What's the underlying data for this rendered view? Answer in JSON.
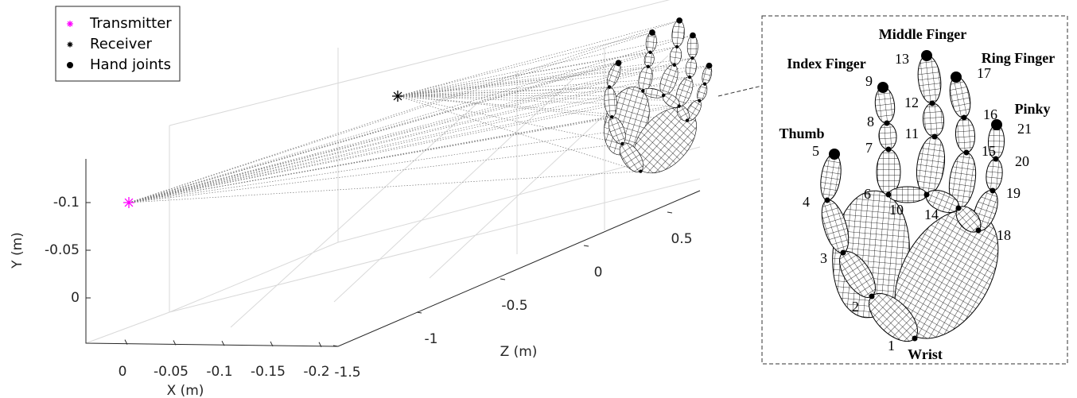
{
  "legend": [
    {
      "label": "Transmitter",
      "color": "#ff00ff"
    },
    {
      "label": "Receiver",
      "color": "#000000"
    },
    {
      "label": "Hand joints",
      "color": "#000000"
    }
  ],
  "axes": {
    "x_label": "X (m)",
    "y_label": "Y (m)",
    "z_label": "Z (m)",
    "xticks": [
      0,
      -0.05,
      -0.1,
      -0.15,
      -0.2
    ],
    "yticks": [
      -0.1,
      -0.05,
      0
    ],
    "zticks": [
      -1.5,
      -1,
      -0.5,
      0,
      0.5
    ]
  },
  "inset": {
    "finger_labels": [
      "Thumb",
      "Index Finger",
      "Middle Finger",
      "Ring Finger",
      "Pinky",
      "Wrist"
    ],
    "joint_numbers": [
      1,
      2,
      3,
      4,
      5,
      6,
      7,
      8,
      9,
      10,
      11,
      12,
      13,
      14,
      15,
      16,
      17,
      18,
      19,
      20,
      21
    ]
  }
}
